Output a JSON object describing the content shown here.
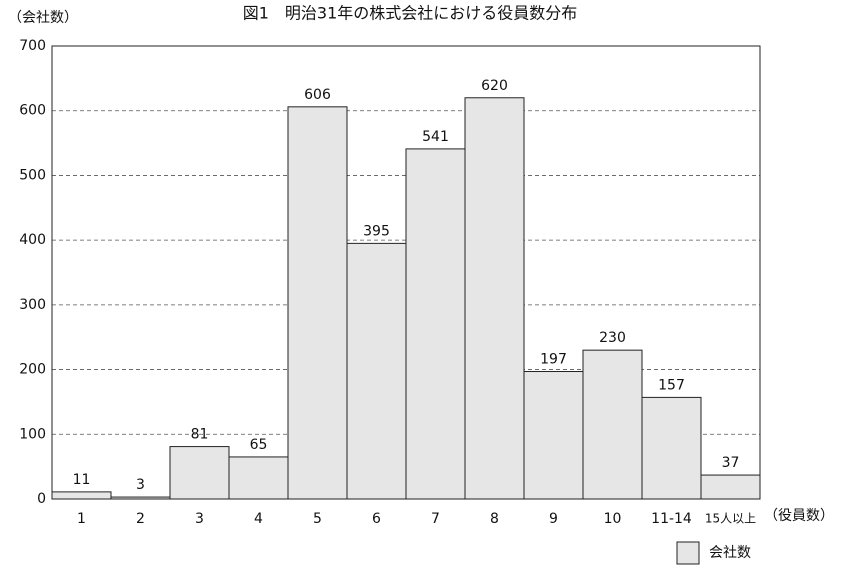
{
  "chart_data": {
    "type": "bar",
    "title": "図1　明治31年の株式会社における役員数分布",
    "y_label": "（会社数）",
    "x_label": "（役員数）",
    "categories": [
      "1",
      "2",
      "3",
      "4",
      "5",
      "6",
      "7",
      "8",
      "9",
      "10",
      "11-14",
      "15人以上"
    ],
    "series": [
      {
        "name": "会社数",
        "color": "#e6e6e6",
        "values": [
          11,
          3,
          81,
          65,
          606,
          395,
          541,
          620,
          197,
          230,
          157,
          37
        ]
      }
    ],
    "ylim": [
      0,
      700
    ],
    "yticks": [
      0,
      100,
      200,
      300,
      400,
      500,
      600,
      700
    ],
    "grid": true,
    "legend": "bottom-right"
  }
}
